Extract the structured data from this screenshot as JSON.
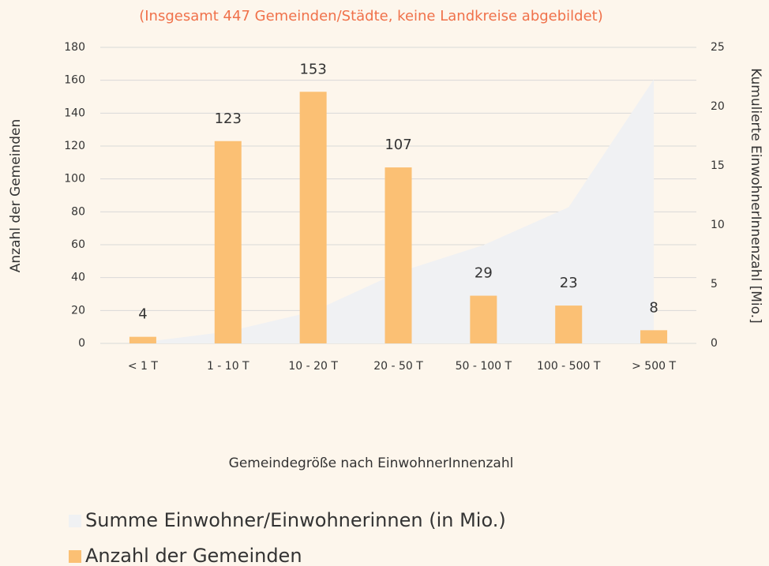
{
  "chart_data": {
    "type": "bar_area",
    "subtitle": "(Insgesamt 447 Gemeinden/Städte, keine Landkreise abgebildet)",
    "x_label": "Gemeindegröße nach EinwohnerInnenzahl",
    "y_label": "Anzahl der Gemeinden",
    "y2_label": "Kumulierte EinwohnerInnenzahl [Mio.]",
    "categories": [
      "< 1 T",
      "1 - 10 T",
      "10 - 20 T",
      "20 - 50 T",
      "50 - 100 T",
      "100 - 500 T",
      "> 500 T"
    ],
    "series": [
      {
        "name": "Summe Einwohner/Einwohnerinnen (in Mio.)",
        "color": "#f0f1f3",
        "type": "area",
        "axis": "y2",
        "values": [
          0.1,
          1.0,
          2.7,
          6.0,
          8.3,
          11.5,
          22.3
        ]
      },
      {
        "name": "Anzahl der Gemeinden",
        "color": "#fbc074",
        "type": "bar",
        "values": [
          4,
          123,
          153,
          107,
          29,
          23,
          8
        ]
      }
    ],
    "ylim": [
      0,
      180
    ],
    "yticks": [
      0,
      20,
      40,
      60,
      80,
      100,
      120,
      140,
      160,
      180
    ],
    "y2lim": [
      0,
      25
    ],
    "y2ticks": [
      0,
      5,
      10,
      15,
      20,
      25
    ],
    "grid": true,
    "legend": "bottom-left"
  }
}
